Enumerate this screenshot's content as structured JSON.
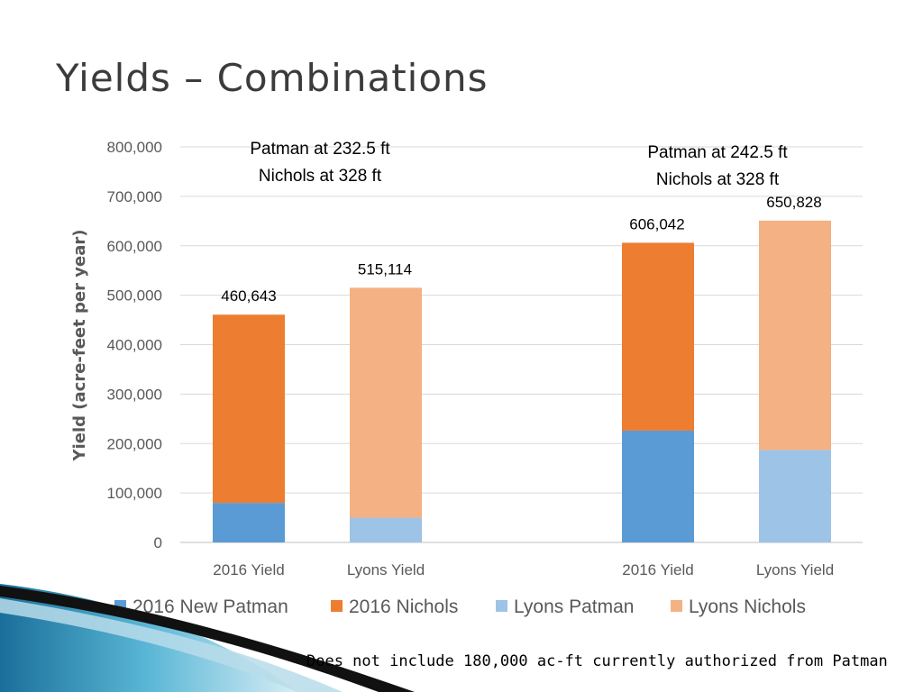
{
  "slide": {
    "title": "Yields – Combinations",
    "footnote": "Does not include 180,000 ac-ft currently authorized from Patman"
  },
  "chart_data": {
    "type": "bar",
    "stacked": true,
    "ylabel": "Yield (acre-feet per year)",
    "ylim": [
      0,
      800000
    ],
    "yticks": [
      0,
      100000,
      200000,
      300000,
      400000,
      500000,
      600000,
      700000,
      800000
    ],
    "ytick_labels": [
      "0",
      "100,000",
      "200,000",
      "300,000",
      "400,000",
      "500,000",
      "600,000",
      "700,000",
      "800,000"
    ],
    "grid": true,
    "legend_position": "bottom",
    "legend": [
      "2016 New Patman",
      "2016 Nichols",
      "Lyons Patman",
      "Lyons Nichols"
    ],
    "legend_colors": [
      "#5B9BD5",
      "#ED7D31",
      "#9DC3E6",
      "#F4B183"
    ],
    "groups": [
      {
        "note_lines": [
          "Patman at 232.5 ft",
          "Nichols at 328 ft"
        ]
      },
      {
        "note_lines": [
          "Patman at 242.5 ft",
          "Nichols at 328 ft"
        ]
      }
    ],
    "bars": [
      {
        "category": "2016 Yield",
        "group": 0,
        "total_label": "460,643",
        "total": 460643,
        "segments": [
          {
            "series": "2016 New Patman",
            "value": 80000,
            "color": "#5B9BD5"
          },
          {
            "series": "2016 Nichols",
            "value": 380643,
            "color": "#ED7D31"
          }
        ]
      },
      {
        "category": "Lyons Yield",
        "group": 0,
        "total_label": "515,114",
        "total": 515114,
        "segments": [
          {
            "series": "Lyons Patman",
            "value": 50000,
            "color": "#9DC3E6"
          },
          {
            "series": "Lyons Nichols",
            "value": 465114,
            "color": "#F4B183"
          }
        ]
      },
      {
        "category": "2016 Yield",
        "group": 1,
        "total_label": "606,042",
        "total": 606042,
        "segments": [
          {
            "series": "2016 New Patman",
            "value": 226000,
            "color": "#5B9BD5"
          },
          {
            "series": "2016 Nichols",
            "value": 380042,
            "color": "#ED7D31"
          }
        ]
      },
      {
        "category": "Lyons Yield",
        "group": 1,
        "total_label": "650,828",
        "total": 650828,
        "segments": [
          {
            "series": "Lyons Patman",
            "value": 187000,
            "color": "#9DC3E6"
          },
          {
            "series": "Lyons Nichols",
            "value": 463828,
            "color": "#F4B183"
          }
        ]
      }
    ]
  }
}
